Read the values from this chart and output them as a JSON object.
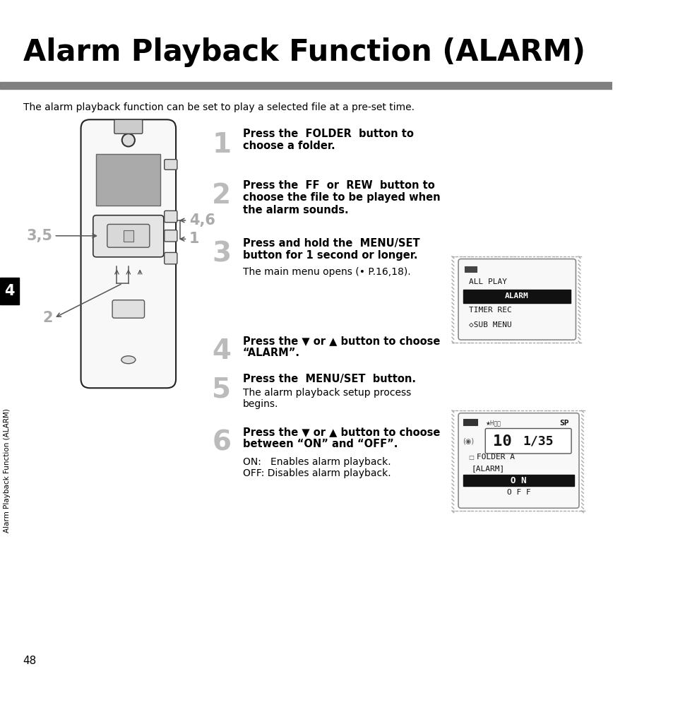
{
  "title": "Alarm Playback Function (ALARM)",
  "subtitle": "The alarm playback function can be set to play a selected file at a pre-set time.",
  "page_number": "48",
  "chapter_number": "4",
  "chapter_label": "Alarm Playback Function (ALARM)",
  "bg_color": "#ffffff",
  "title_color": "#000000",
  "bar_color": "#808080",
  "chapter_bg": "#000000",
  "chapter_fg": "#ffffff",
  "step_num_color": "#bbbbbb",
  "body_color": "#000000",
  "sidebar_color": "#000000",
  "menu1_items": [
    "ALL PLAY",
    "ALARM",
    "TIMER REC",
    "◇SUB MENU"
  ],
  "menu1_highlight": 1,
  "menu2_folder": "FOLDER A",
  "menu2_label": "[ALARM]",
  "menu2_on": "ON",
  "menu2_off": "OFF",
  "step1_bold1": "Press the ",
  "step1_keyword1": "FOLDER",
  "step1_bold2": " button to\nchoose a folder.",
  "step2_bold1": "Press the ",
  "step2_keyword1": "FF",
  "step2_bold2": " or ",
  "step2_keyword2": "REW",
  "step2_bold3": " button to\nchoose the file to be played when\nthe alarm sounds.",
  "step3_bold1": "Press and hold the ",
  "step3_keyword1": "MENU/SET",
  "step3_bold2": "\nbutton for 1 second or longer.",
  "step3_normal": "The main menu opens (• P.16,18).",
  "step4_bold": "Press the ▼ or ▲ button to choose\n“ALARM”.",
  "step5_bold1": "Press the ",
  "step5_keyword1": "MENU/SET",
  "step5_bold2": " button.",
  "step5_normal": "The alarm playback setup process\nbegins.",
  "step6_bold": "Press the ▼ or ▲ button to choose\nbetween “ON” and “OFF”.",
  "step6_normal": "ON:   Enables alarm playback.\nOFF: Disables alarm playback."
}
